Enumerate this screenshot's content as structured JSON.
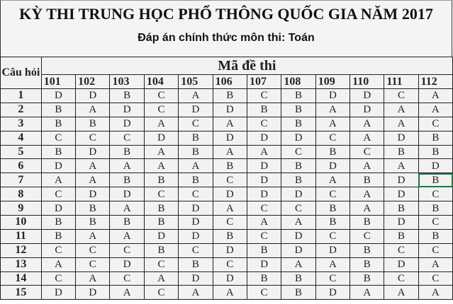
{
  "title": "KỲ THI TRUNG HỌC PHỔ THÔNG QUỐC GIA NĂM 2017",
  "subtitle": "Đáp án chính thức môn thi: Toán",
  "table": {
    "question_header": "Câu hỏi",
    "group_header": "Mã đề thi",
    "codes": [
      "101",
      "102",
      "103",
      "104",
      "105",
      "106",
      "107",
      "108",
      "109",
      "110",
      "111",
      "112"
    ],
    "rows": [
      {
        "q": "1",
        "a": [
          "D",
          "D",
          "B",
          "C",
          "A",
          "B",
          "C",
          "B",
          "D",
          "D",
          "C",
          "A"
        ]
      },
      {
        "q": "2",
        "a": [
          "B",
          "A",
          "D",
          "C",
          "D",
          "D",
          "B",
          "B",
          "A",
          "D",
          "A",
          "A"
        ]
      },
      {
        "q": "3",
        "a": [
          "B",
          "B",
          "D",
          "A",
          "C",
          "A",
          "C",
          "B",
          "A",
          "A",
          "A",
          "C"
        ]
      },
      {
        "q": "4",
        "a": [
          "C",
          "C",
          "C",
          "D",
          "B",
          "D",
          "D",
          "D",
          "C",
          "A",
          "D",
          "B"
        ]
      },
      {
        "q": "5",
        "a": [
          "B",
          "D",
          "B",
          "A",
          "B",
          "A",
          "A",
          "C",
          "B",
          "C",
          "B",
          "B"
        ]
      },
      {
        "q": "6",
        "a": [
          "D",
          "A",
          "A",
          "A",
          "A",
          "B",
          "D",
          "B",
          "D",
          "A",
          "A",
          "D"
        ]
      },
      {
        "q": "7",
        "a": [
          "A",
          "A",
          "B",
          "B",
          "B",
          "C",
          "D",
          "B",
          "A",
          "B",
          "D",
          "B"
        ]
      },
      {
        "q": "8",
        "a": [
          "C",
          "D",
          "D",
          "C",
          "C",
          "D",
          "D",
          "D",
          "C",
          "A",
          "D",
          "C"
        ]
      },
      {
        "q": "9",
        "a": [
          "D",
          "B",
          "A",
          "B",
          "D",
          "A",
          "C",
          "C",
          "B",
          "A",
          "B",
          "B"
        ]
      },
      {
        "q": "10",
        "a": [
          "B",
          "B",
          "B",
          "B",
          "D",
          "C",
          "A",
          "A",
          "B",
          "B",
          "D",
          "C"
        ]
      },
      {
        "q": "11",
        "a": [
          "B",
          "A",
          "A",
          "D",
          "D",
          "B",
          "C",
          "D",
          "C",
          "C",
          "B",
          "B"
        ]
      },
      {
        "q": "12",
        "a": [
          "C",
          "C",
          "C",
          "B",
          "C",
          "D",
          "B",
          "D",
          "D",
          "B",
          "C",
          "C"
        ]
      },
      {
        "q": "13",
        "a": [
          "A",
          "C",
          "D",
          "C",
          "B",
          "C",
          "D",
          "A",
          "A",
          "B",
          "D",
          "A"
        ]
      },
      {
        "q": "14",
        "a": [
          "C",
          "A",
          "C",
          "A",
          "D",
          "D",
          "B",
          "B",
          "C",
          "B",
          "C",
          "C"
        ]
      },
      {
        "q": "15",
        "a": [
          "D",
          "D",
          "A",
          "C",
          "A",
          "A",
          "C",
          "B",
          "D",
          "A",
          "A",
          "A"
        ]
      }
    ],
    "selected_cell": {
      "question": "7",
      "code": "112"
    },
    "selection_color": "#217346"
  }
}
